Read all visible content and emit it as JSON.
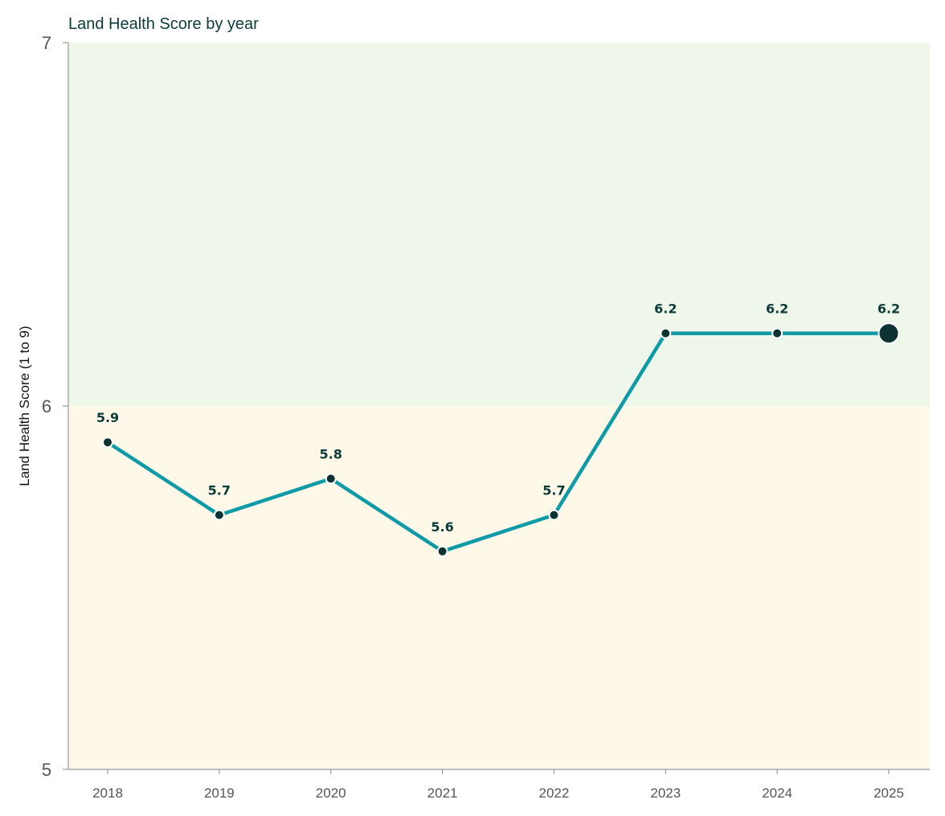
{
  "chart_data": {
    "type": "line",
    "title": "Land Health Score by year",
    "ylabel": "Land Health Score (1 to 9)",
    "xlabel": "",
    "categories": [
      "2018",
      "2019",
      "2020",
      "2021",
      "2022",
      "2023",
      "2024",
      "2025"
    ],
    "series": [
      {
        "values": [
          5.9,
          5.7,
          5.8,
          5.6,
          5.7,
          6.2,
          6.2,
          6.2
        ],
        "data_labels": [
          "5.9",
          "5.7",
          "5.8",
          "5.6",
          "5.7",
          "6.2",
          "6.2",
          "6.2"
        ]
      }
    ],
    "ylim": [
      5,
      7
    ],
    "yticks": [
      "5",
      "6",
      "7"
    ],
    "bands": [
      {
        "from": 5,
        "to": 6,
        "color": "#fdf8e7"
      },
      {
        "from": 6,
        "to": 7,
        "color": "#eef7ea"
      }
    ],
    "grid": false,
    "legend": "none",
    "colors": {
      "line": "#0e9aa7",
      "marker": "#0c3332",
      "marker_stroke": "#ffffff",
      "label": "#0c3b3a",
      "axis": "#999999"
    }
  }
}
